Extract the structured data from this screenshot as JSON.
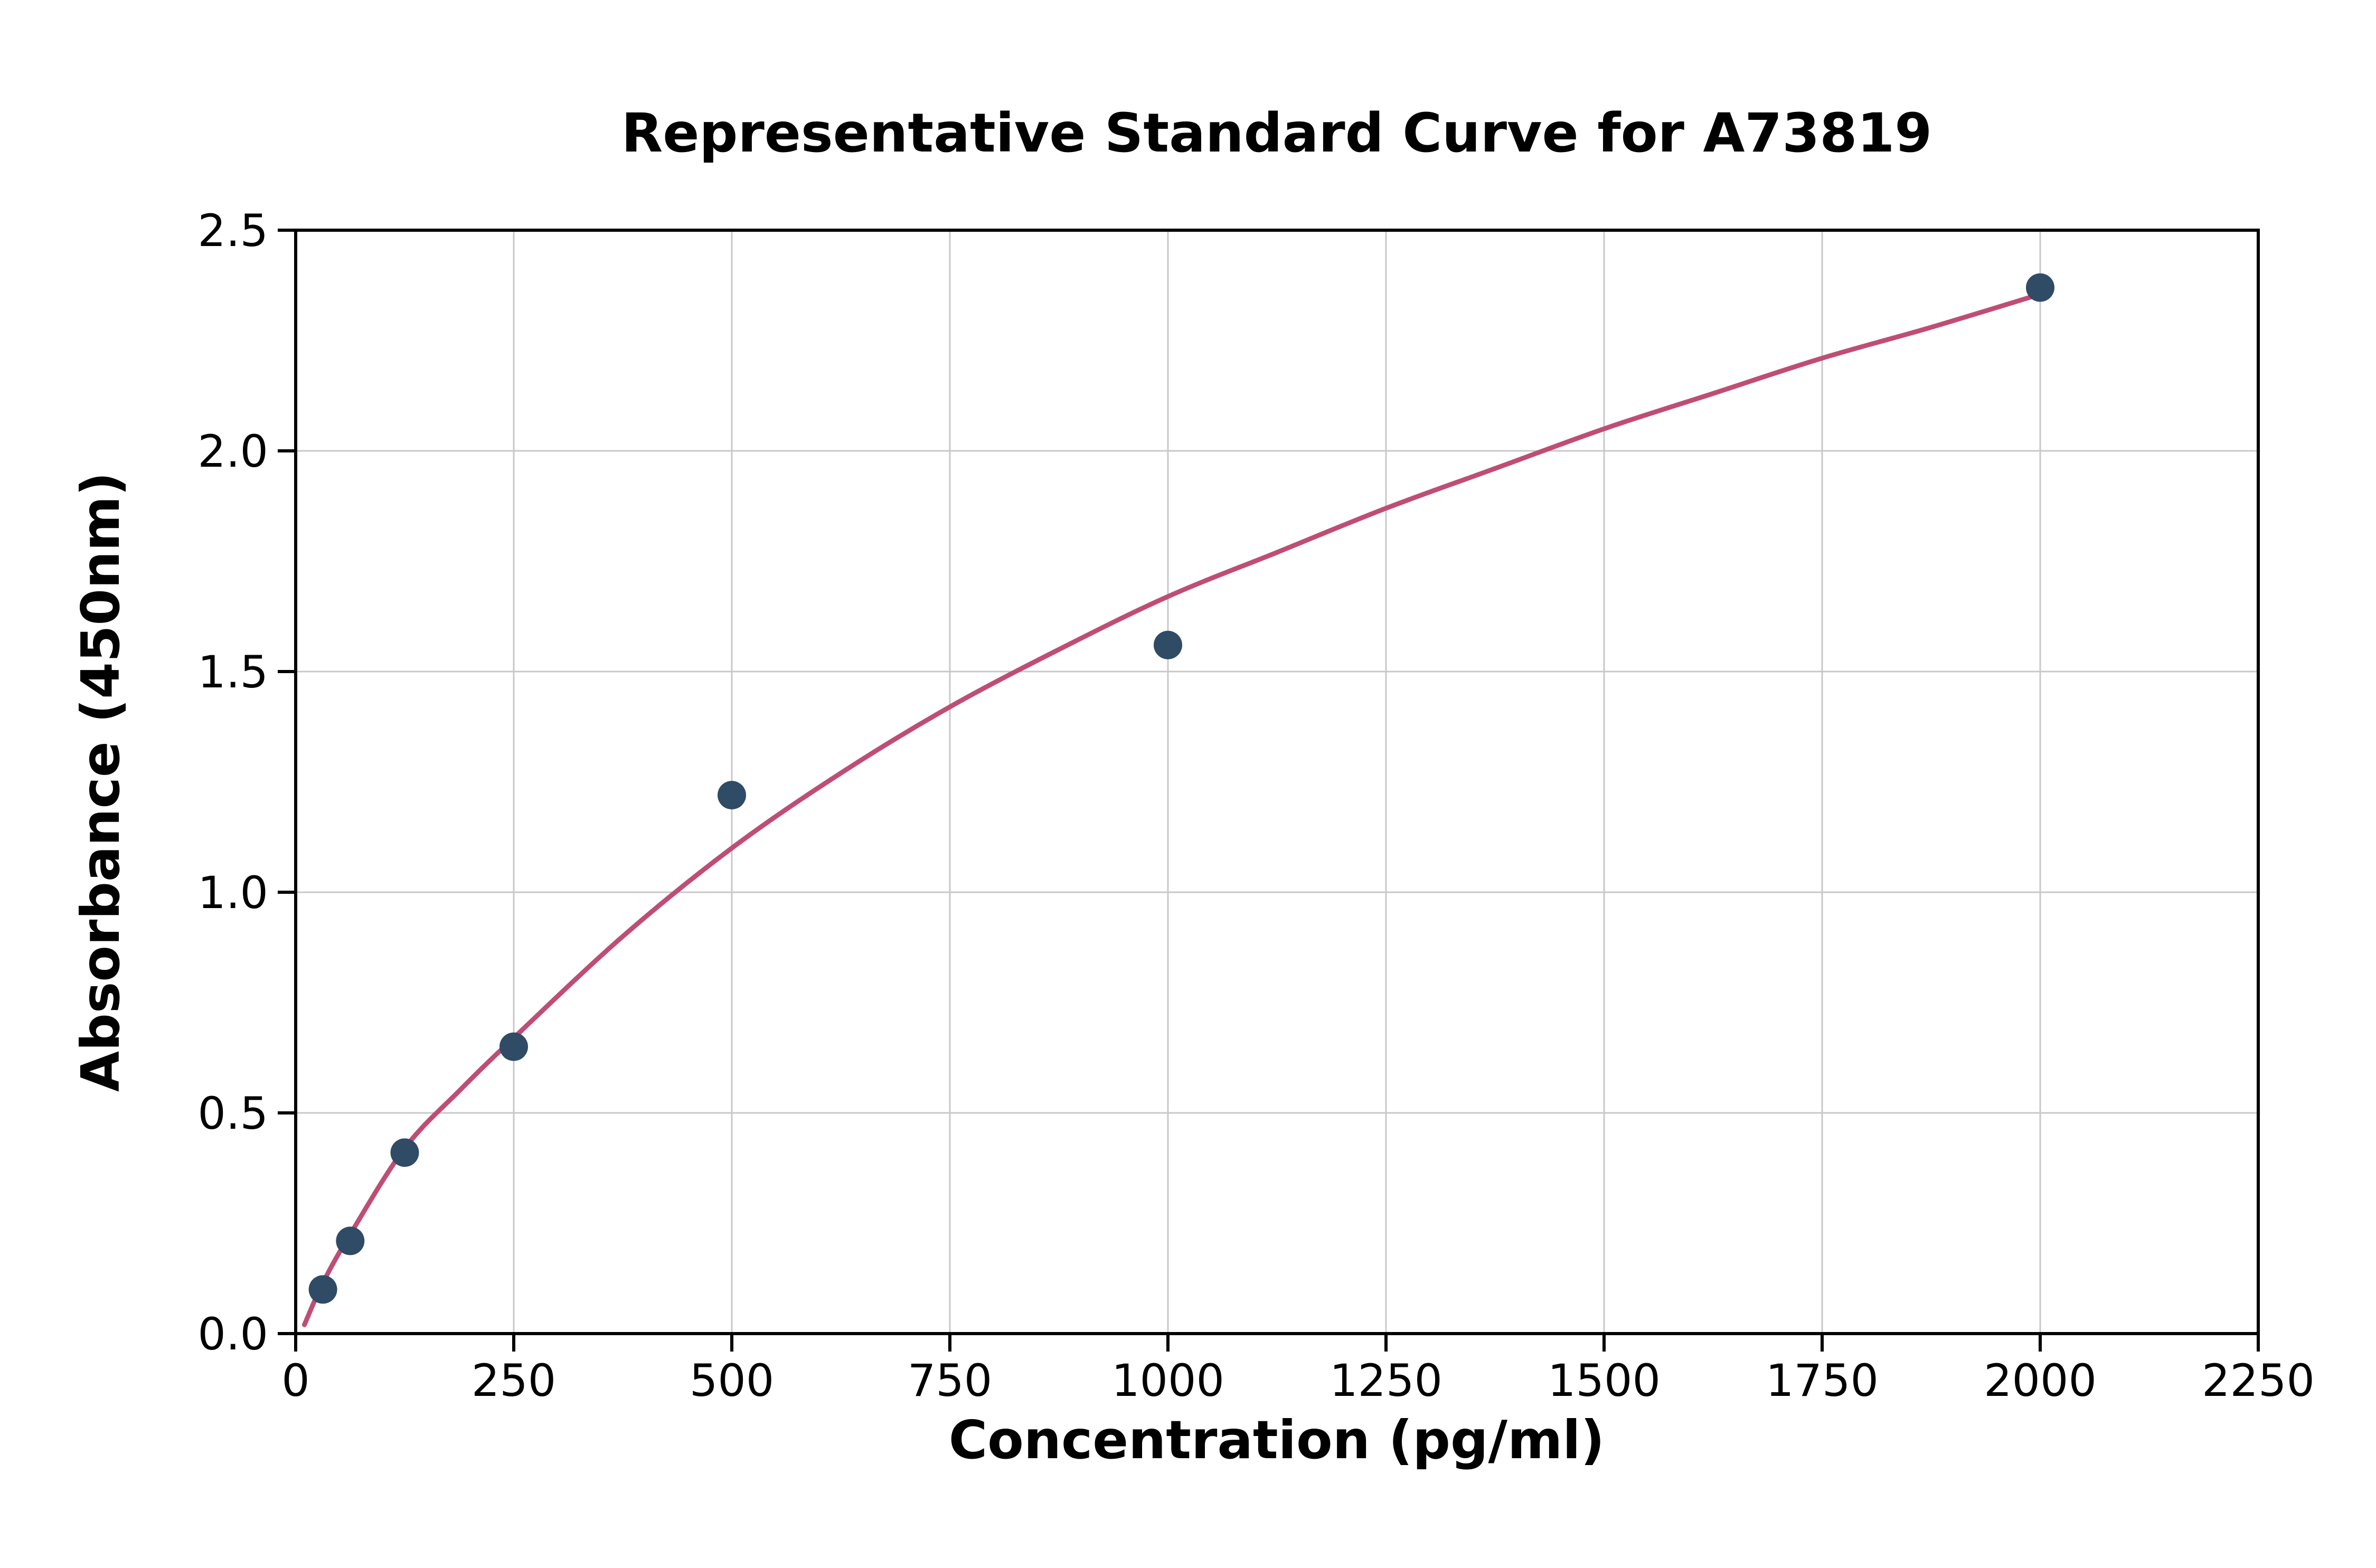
{
  "chart_data": {
    "type": "scatter",
    "title": "Representative Standard Curve for A73819",
    "xlabel": "Concentration (pg/ml)",
    "ylabel": "Absorbance (450nm)",
    "xlim": [
      0,
      2250
    ],
    "ylim": [
      0,
      2.5
    ],
    "x_ticks": [
      0,
      250,
      500,
      750,
      1000,
      1250,
      1500,
      1750,
      2000,
      2250
    ],
    "x_tick_labels": [
      "0",
      "250",
      "500",
      "750",
      "1000",
      "1250",
      "1500",
      "1750",
      "2000",
      "2250"
    ],
    "y_ticks": [
      0,
      0.5,
      1.0,
      1.5,
      2.0,
      2.5
    ],
    "y_tick_labels": [
      "0.0",
      "0.5",
      "1.0",
      "1.5",
      "2.0",
      "2.5"
    ],
    "grid": true,
    "legend": "none",
    "points": [
      {
        "x": 31.25,
        "y": 0.1
      },
      {
        "x": 62.5,
        "y": 0.21
      },
      {
        "x": 125,
        "y": 0.41
      },
      {
        "x": 250,
        "y": 0.65
      },
      {
        "x": 500,
        "y": 1.22
      },
      {
        "x": 1000,
        "y": 1.56
      },
      {
        "x": 2000,
        "y": 2.37
      }
    ],
    "fit_curve": {
      "samples": [
        [
          10,
          0.02
        ],
        [
          31.25,
          0.115
        ],
        [
          62.5,
          0.225
        ],
        [
          125,
          0.42
        ],
        [
          187.5,
          0.55
        ],
        [
          250,
          0.67
        ],
        [
          375,
          0.9
        ],
        [
          500,
          1.1
        ],
        [
          625,
          1.27
        ],
        [
          750,
          1.42
        ],
        [
          875,
          1.55
        ],
        [
          1000,
          1.67
        ],
        [
          1125,
          1.77
        ],
        [
          1250,
          1.87
        ],
        [
          1375,
          1.96
        ],
        [
          1500,
          2.05
        ],
        [
          1625,
          2.13
        ],
        [
          1750,
          2.21
        ],
        [
          1875,
          2.28
        ],
        [
          2000,
          2.355
        ]
      ]
    },
    "colors": {
      "point": "#2f4b66",
      "curve": "#bf4d75",
      "grid": "#c8c8c8",
      "axis": "#000000",
      "background": "#ffffff",
      "text": "#000000"
    }
  }
}
